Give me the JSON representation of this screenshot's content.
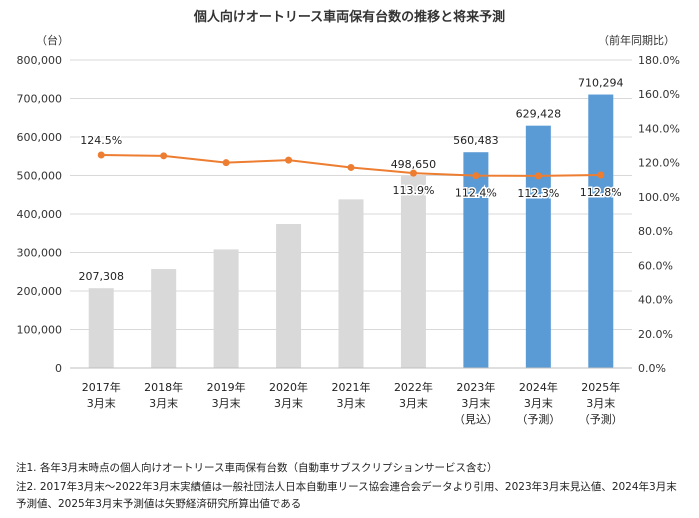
{
  "chart_data": {
    "type": "bar+line",
    "title": "個人向けオートリース車両保有台数の推移と将来予測",
    "left_unit": "（台）",
    "right_unit": "（前年同期比）",
    "categories": [
      [
        "2017年",
        "3月末"
      ],
      [
        "2018年",
        "3月末"
      ],
      [
        "2019年",
        "3月末"
      ],
      [
        "2020年",
        "3月末"
      ],
      [
        "2021年",
        "3月末"
      ],
      [
        "2022年",
        "3月末"
      ],
      [
        "2023年",
        "3月末",
        "（見込）"
      ],
      [
        "2024年",
        "3月末",
        "（予測）"
      ],
      [
        "2025年",
        "3月末",
        "（予測）"
      ]
    ],
    "series": [
      {
        "name": "保有台数",
        "axis": "left",
        "values": [
          207308,
          257000,
          308000,
          374000,
          438000,
          498650,
          560483,
          629428,
          710294
        ],
        "bar_colors": [
          "#d9d9d9",
          "#d9d9d9",
          "#d9d9d9",
          "#d9d9d9",
          "#d9d9d9",
          "#d9d9d9",
          "#5b9bd5",
          "#5b9bd5",
          "#5b9bd5"
        ],
        "labels": [
          "207,308",
          "",
          "",
          "",
          "",
          "498,650",
          "560,483",
          "629,428",
          "710,294"
        ]
      },
      {
        "name": "前年同期比",
        "axis": "right",
        "values": [
          124.5,
          124.0,
          120.0,
          121.5,
          117.2,
          113.9,
          112.4,
          112.3,
          112.8
        ],
        "color": "#ed7d31",
        "labels": [
          "124.5%",
          "",
          "",
          "",
          "",
          "113.9%",
          "112.4%",
          "112.3%",
          "112.8%"
        ]
      }
    ],
    "ylim_left": [
      0,
      800000
    ],
    "yticks_left": [
      "0",
      "100,000",
      "200,000",
      "300,000",
      "400,000",
      "500,000",
      "600,000",
      "700,000",
      "800,000"
    ],
    "ylim_right": [
      0,
      180
    ],
    "yticks_right": [
      "0.0%",
      "20.0%",
      "40.0%",
      "60.0%",
      "80.0%",
      "100.0%",
      "120.0%",
      "140.0%",
      "160.0%",
      "180.0%"
    ],
    "grid": true
  },
  "notes": {
    "note1": "注1. 各年3月末時点の個人向けオートリース車両保有台数（自動車サブスクリプションサービス含む）",
    "note2_line1": "注2. 2017年3月末～2022年3月末実績値は一般社団法人日本自動車リース協会連合会データより引用、2023年3月末見込値、2024年3月末",
    "note2_line2": "予測値、2025年3月末予測値は矢野経済研究所算出値である"
  }
}
